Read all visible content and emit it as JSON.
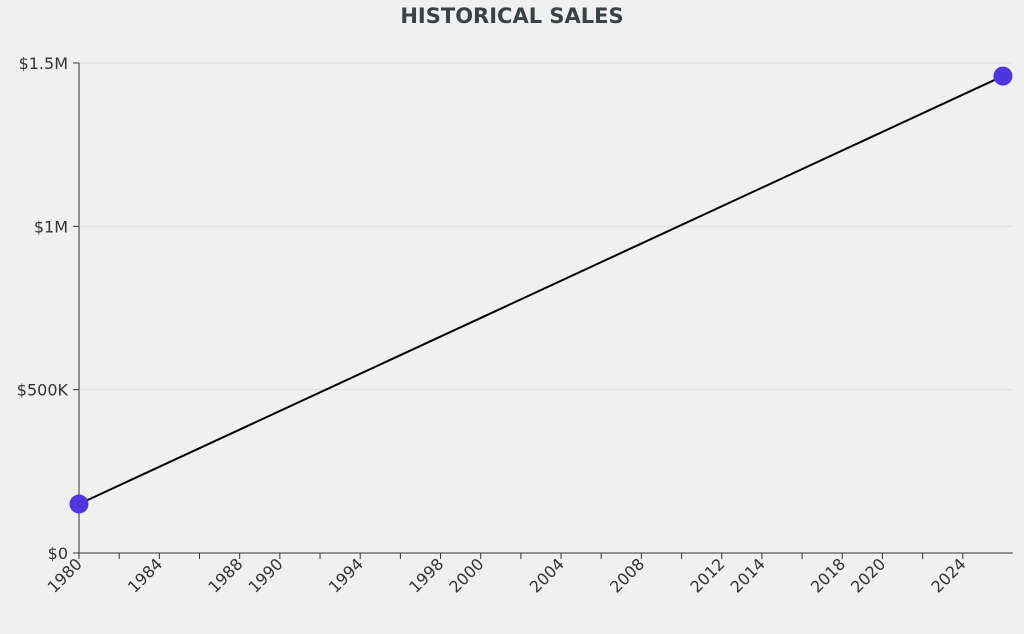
{
  "chart_data": {
    "type": "line",
    "title": "HISTORICAL SALES",
    "xlabel": "",
    "ylabel": "",
    "x_tick_labels": [
      "1980",
      "1984",
      "1988",
      "1990",
      "1994",
      "1998",
      "2000",
      "2004",
      "2008",
      "2012",
      "2014",
      "2018",
      "2020",
      "2024"
    ],
    "x_ticks": [
      1980,
      1982,
      1984,
      1986,
      1988,
      1990,
      1992,
      1994,
      1996,
      1998,
      2000,
      2002,
      2004,
      2006,
      2008,
      2010,
      2012,
      2014,
      2016,
      2018,
      2020,
      2022,
      2024
    ],
    "xlim": [
      1980,
      2026.5
    ],
    "y_ticks": [
      {
        "value": 0,
        "label": "$0"
      },
      {
        "value": 500000,
        "label": "$500K"
      },
      {
        "value": 1000000,
        "label": "$1M"
      },
      {
        "value": 1500000,
        "label": "$1.5M"
      }
    ],
    "ylim": [
      0,
      1500000
    ],
    "grid": true,
    "series": [
      {
        "points": [
          {
            "x": 1980,
            "y": 150000
          },
          {
            "x": 2026,
            "y": 1460000
          }
        ]
      }
    ],
    "line_color": "#000000",
    "marker_color": "#4f35e0",
    "gridline_color": "#dddddd",
    "axis_color": "#333333"
  }
}
